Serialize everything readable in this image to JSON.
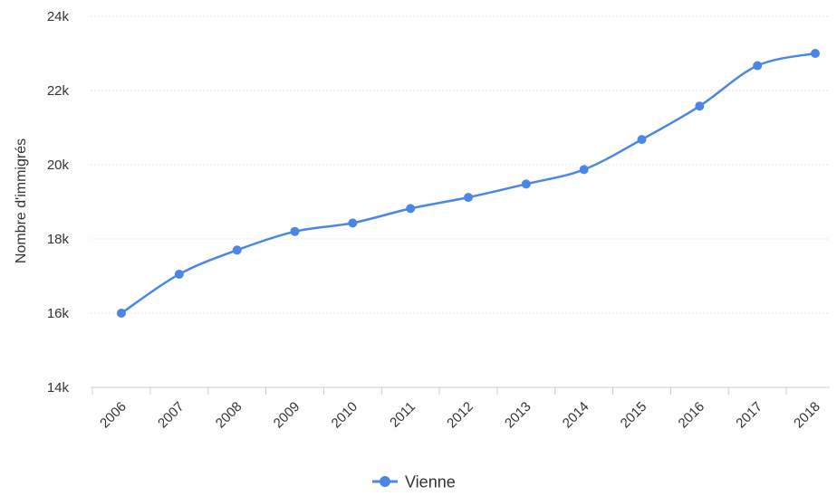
{
  "chart_data": {
    "type": "line",
    "title": "",
    "xlabel": "",
    "ylabel": "Nombre d'immigrés",
    "categories": [
      "2006",
      "2007",
      "2008",
      "2009",
      "2010",
      "2011",
      "2012",
      "2013",
      "2014",
      "2015",
      "2016",
      "2017",
      "2018"
    ],
    "series": [
      {
        "name": "Vienne",
        "color": "#4a86e8",
        "values": [
          16000,
          17050,
          17700,
          18200,
          18430,
          18820,
          19120,
          19480,
          19870,
          20680,
          21580,
          22670,
          23000
        ]
      }
    ],
    "ylim": [
      14000,
      24000
    ],
    "yticks": [
      {
        "value": 14000,
        "label": "14k"
      },
      {
        "value": 16000,
        "label": "16k"
      },
      {
        "value": 18000,
        "label": "18k"
      },
      {
        "value": 20000,
        "label": "20k"
      },
      {
        "value": 22000,
        "label": "22k"
      },
      {
        "value": 24000,
        "label": "24k"
      }
    ],
    "grid": true,
    "legend_position": "bottom-center",
    "gridline_color": "#e6e6e6",
    "axis_color": "#cccccc"
  }
}
